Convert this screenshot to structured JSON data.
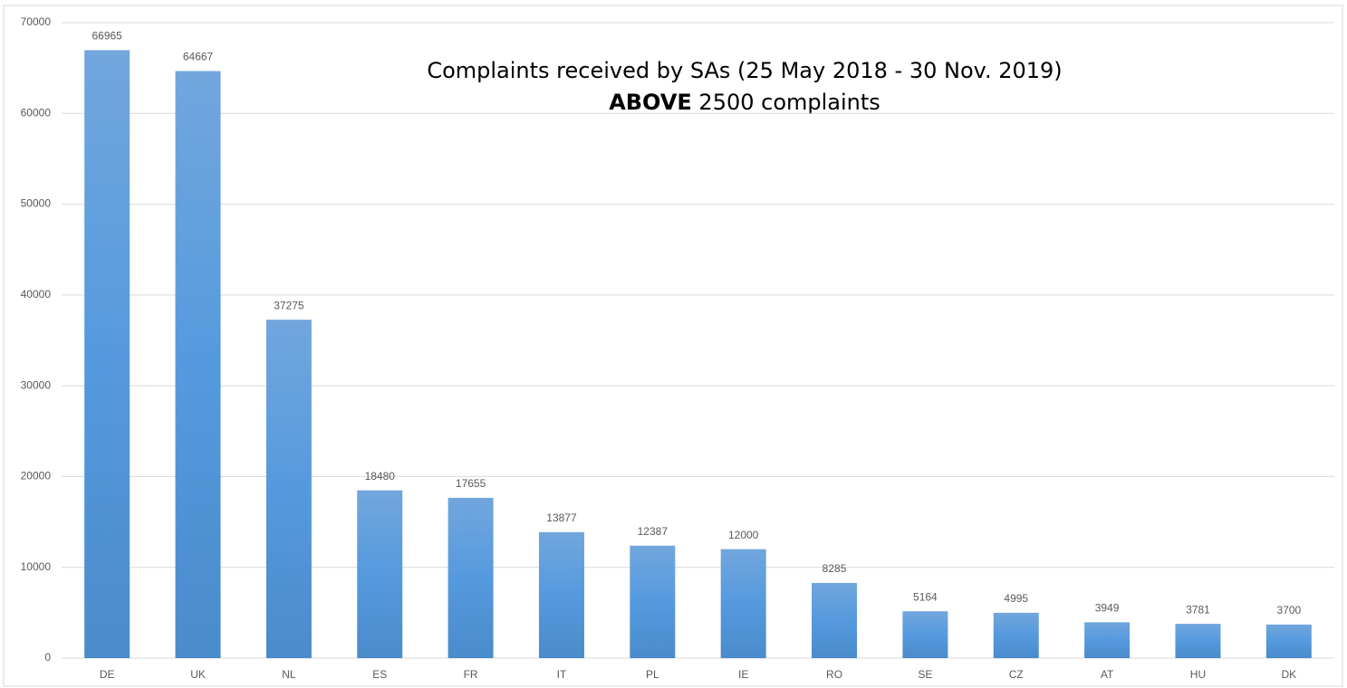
{
  "chart_data": {
    "type": "bar",
    "title": "Complaints received by SAs (25 May 2018 - 30 Nov. 2019)",
    "subtitle_bold": "ABOVE",
    "subtitle": "2500 complaints",
    "categories": [
      "DE",
      "UK",
      "NL",
      "ES",
      "FR",
      "IT",
      "PL",
      "IE",
      "RO",
      "SE",
      "CZ",
      "AT",
      "HU",
      "DK"
    ],
    "values": [
      66965,
      64667,
      37275,
      18480,
      17655,
      13877,
      12387,
      12000,
      8285,
      5164,
      4995,
      3949,
      3781,
      3700
    ],
    "color": "#5b9bd5",
    "ylim": [
      0,
      70000
    ],
    "yticks": [
      0,
      10000,
      20000,
      30000,
      40000,
      50000,
      60000,
      70000
    ],
    "grid": true
  }
}
